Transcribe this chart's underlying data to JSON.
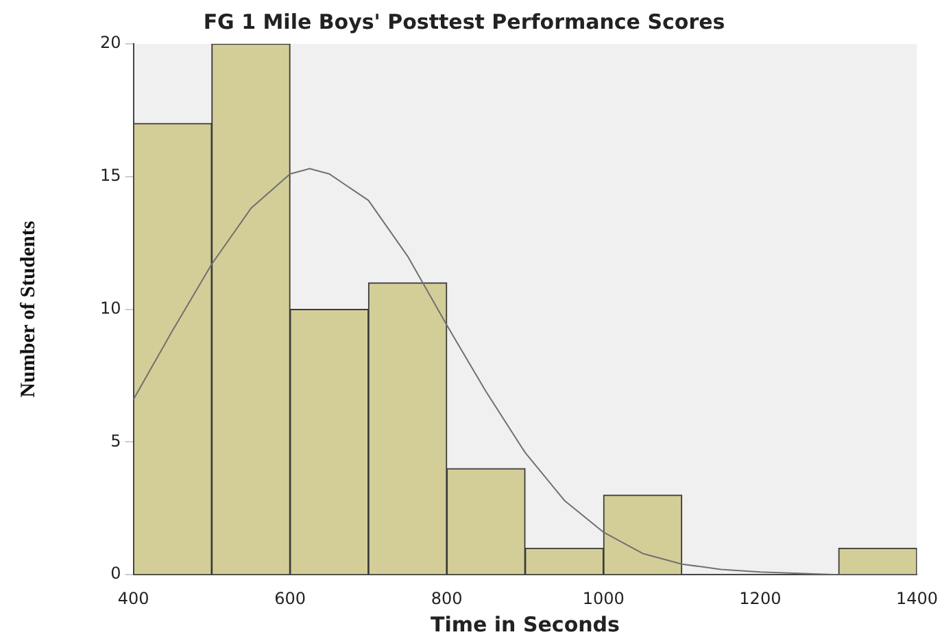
{
  "chart_data": {
    "type": "histogram",
    "title": "FG 1 Mile Boys' Posttest Performance Scores",
    "xlabel": "Time in Seconds",
    "ylabel": "Number of Students",
    "bins": [
      400,
      500,
      600,
      700,
      800,
      900,
      1000,
      1100,
      1200,
      1300,
      1400
    ],
    "values": [
      17,
      20,
      10,
      11,
      4,
      1,
      3,
      0,
      0,
      1
    ],
    "color": "#d3ce97",
    "series": [
      {
        "type": "line",
        "color": "#707070",
        "x": [
          400,
          450,
          500,
          550,
          600,
          625,
          650,
          700,
          750,
          800,
          850,
          900,
          950,
          1000,
          1050,
          1100,
          1150,
          1200,
          1300,
          1400
        ],
        "values": [
          6.6,
          9.2,
          11.7,
          13.8,
          15.1,
          15.3,
          15.1,
          14.1,
          12.0,
          9.4,
          6.9,
          4.6,
          2.8,
          1.6,
          0.8,
          0.4,
          0.2,
          0.1,
          0,
          0
        ]
      }
    ],
    "xlim": [
      400,
      1400
    ],
    "xticks": [
      400,
      600,
      800,
      1000,
      1200,
      1400
    ],
    "ylim": [
      0,
      20
    ],
    "yticks": [
      0,
      5,
      10,
      15,
      20
    ],
    "grid": false,
    "legend": false
  }
}
